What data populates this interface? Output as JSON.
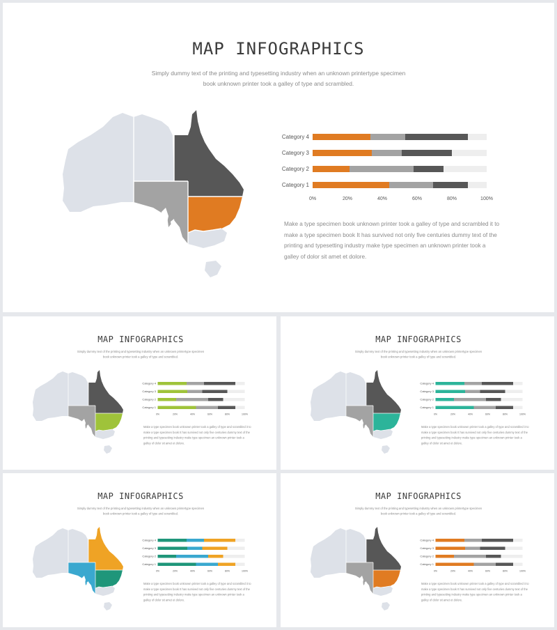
{
  "slide": {
    "title": "MAP INFOGRAPHICS",
    "subtitle_line1": "Simply dummy text of the printing and typesetting industry when  an unknown  printertype  specimen",
    "subtitle_line2": "book unknown  printer took a galley of type and scrambled.",
    "body_text": "Make  a type  specimen book unknown printer took a galley of type  and scrambled it to make a type  specimen book It has survived not only five  centuries dummy text of the printing and typesetting industry make type  specimen an unknown printer took a galley of dolor sit amet et dolore."
  },
  "colors": {
    "background": "#e6e8ec",
    "map_light": "#dde1e8",
    "dark_gray": "#575757",
    "mid_gray": "#a3a3a3",
    "track": "#eeeeee"
  },
  "chart_data": {
    "type": "bar",
    "stacked": true,
    "orientation": "horizontal",
    "categories": [
      "Category 1",
      "Category 2",
      "Category 3",
      "Category 4"
    ],
    "x_ticks": [
      "0%",
      "20%",
      "40%",
      "60%",
      "80%",
      "100%"
    ],
    "xlim": [
      0,
      100
    ],
    "series": [
      {
        "values": [
          44,
          21,
          34,
          33
        ]
      },
      {
        "values": [
          25,
          37,
          17,
          20
        ]
      },
      {
        "values": [
          20,
          17,
          29,
          36
        ]
      }
    ]
  },
  "variants": [
    {
      "name": "main-orange",
      "map_colors": {
        "qld": "#575757",
        "sa": "#a3a3a3",
        "nsw": "#e07b22"
      },
      "bar_colors": [
        "#e07b22",
        "#a3a3a3",
        "#575757"
      ]
    },
    {
      "name": "lime",
      "map_colors": {
        "qld": "#575757",
        "sa": "#a3a3a3",
        "nsw": "#9fc33a"
      },
      "bar_colors": [
        "#9fc33a",
        "#a3a3a3",
        "#575757"
      ]
    },
    {
      "name": "teal",
      "map_colors": {
        "qld": "#575757",
        "sa": "#a3a3a3",
        "nsw": "#2cb49a"
      },
      "bar_colors": [
        "#2cb49a",
        "#a3a3a3",
        "#575757"
      ]
    },
    {
      "name": "multicolor",
      "map_colors": {
        "qld": "#efa325",
        "sa": "#3aa8cf",
        "nsw": "#1f967a"
      },
      "bar_colors": [
        "#1f967a",
        "#3aa8cf",
        "#efa325"
      ]
    },
    {
      "name": "orange-small",
      "map_colors": {
        "qld": "#575757",
        "sa": "#a3a3a3",
        "nsw": "#e07b22"
      },
      "bar_colors": [
        "#e07b22",
        "#a3a3a3",
        "#575757"
      ]
    }
  ]
}
